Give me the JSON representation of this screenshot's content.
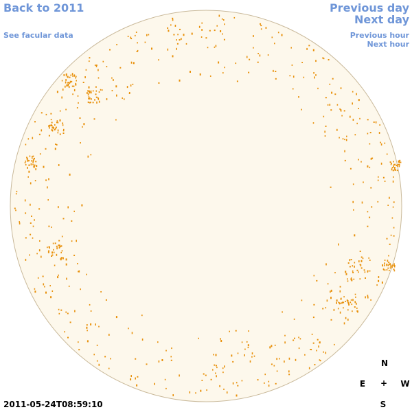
{
  "nav": {
    "back": "Back to 2011",
    "facular": "See facular data",
    "prev_day": "Previous day",
    "next_day": "Next day",
    "prev_hour": "Previous hour",
    "next_hour": "Next hour"
  },
  "timestamp": "2011-05-24T08:59:10",
  "compass": {
    "north": "N",
    "south": "S",
    "east": "E",
    "west": "W",
    "center": "+"
  },
  "colors": {
    "link": "#6f96d8",
    "disk_fill": "#fdf8ec",
    "disk_border": "#c9b99a",
    "facula": "#e8900a"
  }
}
